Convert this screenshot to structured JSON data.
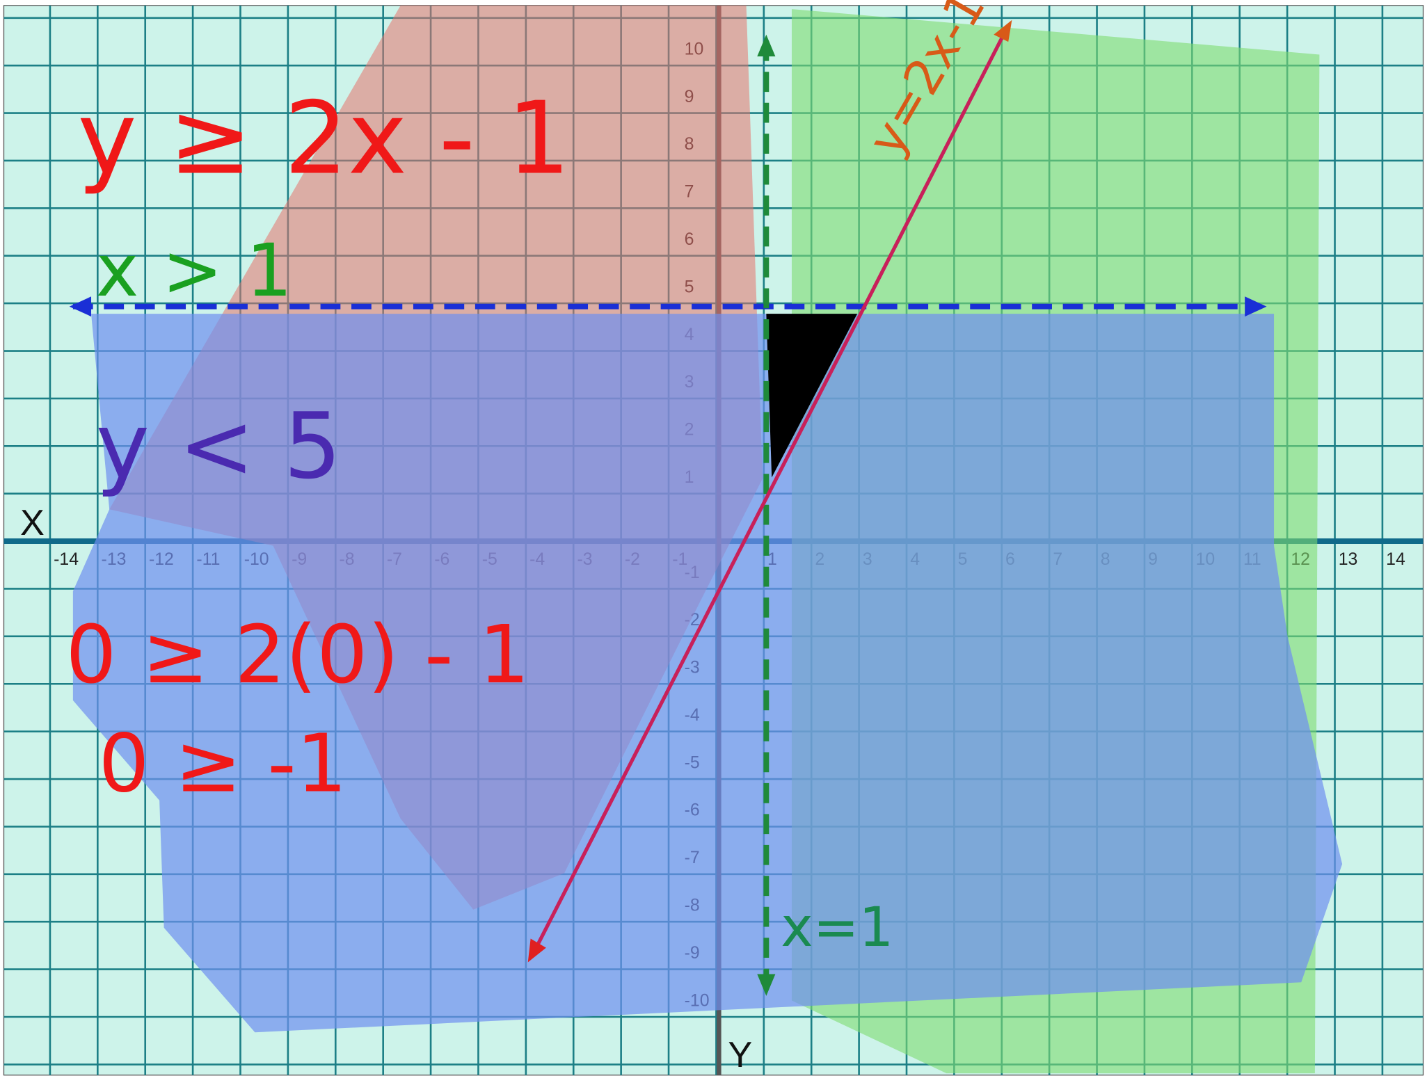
{
  "graph": {
    "x_axis_label": "X",
    "y_axis_label": "Y",
    "x_ticks": [
      -14,
      -13,
      -12,
      -11,
      -10,
      -9,
      -8,
      -7,
      -6,
      -5,
      -4,
      -3,
      -2,
      -1,
      1,
      2,
      3,
      4,
      5,
      6,
      7,
      8,
      9,
      10,
      11,
      12,
      13,
      14
    ],
    "y_ticks": [
      10,
      9,
      8,
      7,
      6,
      5,
      4,
      3,
      2,
      1,
      -1,
      -2,
      -3,
      -4,
      -5,
      -6,
      -7,
      -8,
      -9,
      -10
    ]
  },
  "annotations": {
    "inequality_1": "y ≥ 2x - 1",
    "inequality_2": "x > 1",
    "inequality_3": "y < 5",
    "test_1": "0 ≥ 2(0) - 1",
    "test_2": "0 ≥ -1",
    "line_label_1": "y=2x-1",
    "line_label_2": "x=1"
  }
}
